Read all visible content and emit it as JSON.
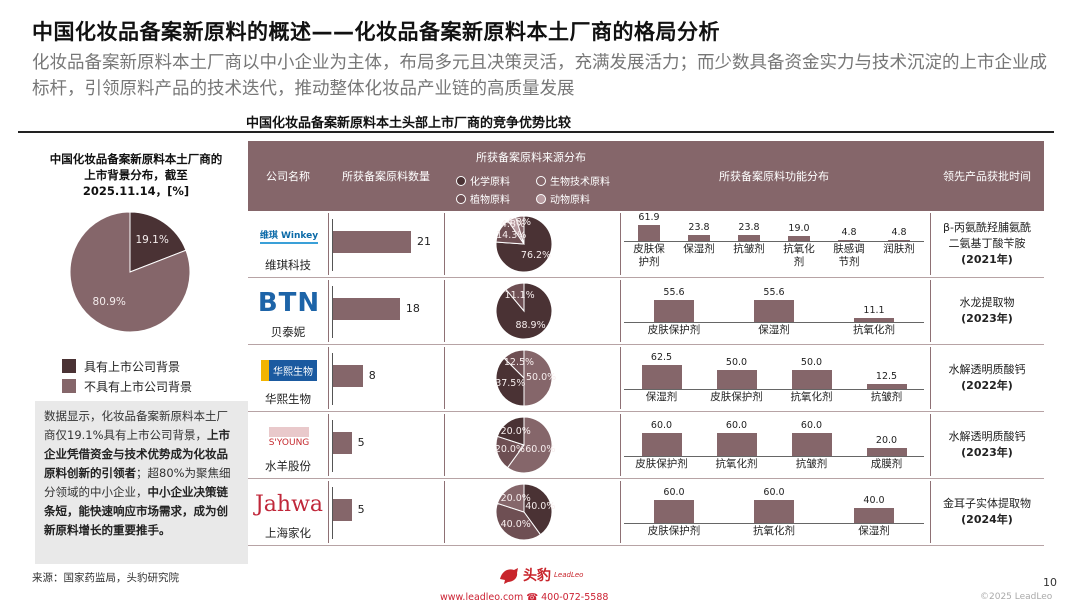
{
  "title": "中国化妆品备案新原料的概述——化妆品备案新原料本土厂商的格局分析",
  "subtitle": "化妆品备案新原料本土厂商以中小企业为主体，布局多元且决策灵活，充满发展活力；而少数具备资金实力与技术沉淀的上市企业成标杆，引领原料产品的技术迭代，推动整体化妆品产业链的高质量发展",
  "colors": {
    "primary": "#85666a",
    "dark": "#4a3234",
    "mid": "#6e4f53",
    "light": "#b89ba0"
  },
  "left_panel": {
    "title": "中国化妆品备案新原料本土厂商的上市背景分布，截至2025.11.14，[%]",
    "note_parts": [
      {
        "text": "数据显示，化妆品备案新原料本土厂商仅19.1%具有上市公司背景，",
        "bold": false
      },
      {
        "text": "上市企业凭借资金与技术优势成为化妆品原料创新的引领者",
        "bold": true
      },
      {
        "text": "；超80%为聚焦细分领域的中小企业，",
        "bold": false
      },
      {
        "text": "中小企业决策链条短，能快速响应市场需求，成为创新原料增长的重要推手。",
        "bold": true
      }
    ],
    "source": "来源：国家药监局，头豹研究院"
  },
  "table": {
    "title": "中国化妆品备案新原料本土头部上市厂商的竞争优势比较",
    "headers": {
      "company": "公司名称",
      "count": "所获备案原料数量",
      "source": "所获备案原料来源分布",
      "func": "所获备案原料功能分布",
      "approval": "领先产品获批时间"
    },
    "source_legend": [
      {
        "label": "化学原料",
        "color": "#4a3234"
      },
      {
        "label": "生物技术原料",
        "color": "#85666a"
      },
      {
        "label": "植物原料",
        "color": "#6e4f53"
      },
      {
        "label": "动物原料",
        "color": "#b89ba0"
      }
    ],
    "rows": [
      {
        "name": "维琪科技",
        "logo": "维琪 Winkey",
        "count": "21",
        "product_line1": "β-丙氨酰羟脯氨酰",
        "product_line2": "二氨基丁酸苄胺",
        "year": "(2021年)"
      },
      {
        "name": "贝泰妮",
        "logo": "BTN",
        "count": "18",
        "product_line1": "水龙提取物",
        "product_line2": "",
        "year": "(2023年)"
      },
      {
        "name": "华熙生物",
        "logo": "华熙生物",
        "count": "8",
        "product_line1": "水解透明质酸钙",
        "product_line2": "",
        "year": "(2022年)"
      },
      {
        "name": "水羊股份",
        "logo": "S'YOUNG",
        "count": "5",
        "product_line1": "水解透明质酸钙",
        "product_line2": "",
        "year": "(2023年)"
      },
      {
        "name": "上海家化",
        "logo": "Jahwa",
        "count": "5",
        "product_line1": "金耳子实体提取物",
        "product_line2": "",
        "year": "(2024年)"
      }
    ]
  },
  "footer": {
    "brand": "头豹",
    "brand_en": "LeadLeo",
    "contact": "www.leadleo.com  ☎ 400-072-5588",
    "page": "10",
    "copyright": "©2025 LeadLeo"
  },
  "chart_data": [
    {
      "type": "pie",
      "title": "中国化妆品备案新原料本土厂商的上市背景分布，截至2025.11.14，[%]",
      "categories": [
        "具有上市公司背景",
        "不具有上市公司背景"
      ],
      "values": [
        19.1,
        80.9
      ],
      "colors": [
        "#4a3234",
        "#85666a"
      ]
    },
    {
      "type": "bar",
      "title": "所获备案原料数量",
      "categories": [
        "维琪科技",
        "贝泰妮",
        "华熙生物",
        "水羊股份",
        "上海家化"
      ],
      "values": [
        21,
        18,
        8,
        5,
        5
      ]
    },
    {
      "type": "pie",
      "title": "所获备案原料来源分布",
      "series": [
        {
          "name": "维琪科技",
          "slices": [
            {
              "cat": "化学原料",
              "v": 76.2
            },
            {
              "cat": "植物原料",
              "v": 14.3
            },
            {
              "cat": "动物原料",
              "v": 4.8
            },
            {
              "cat": "生物技术原料",
              "v": 4.8
            }
          ]
        },
        {
          "name": "贝泰妮",
          "slices": [
            {
              "cat": "化学原料",
              "v": 88.9
            },
            {
              "cat": "植物原料",
              "v": 11.1
            }
          ]
        },
        {
          "name": "华熙生物",
          "slices": [
            {
              "cat": "生物技术原料",
              "v": 50.0
            },
            {
              "cat": "化学原料",
              "v": 37.5
            },
            {
              "cat": "植物原料",
              "v": 12.5
            }
          ]
        },
        {
          "name": "水羊股份",
          "slices": [
            {
              "cat": "生物技术原料",
              "v": 60.0
            },
            {
              "cat": "植物原料",
              "v": 20.0
            },
            {
              "cat": "化学原料",
              "v": 20.0
            }
          ]
        },
        {
          "name": "上海家化",
          "slices": [
            {
              "cat": "化学原料",
              "v": 40.0
            },
            {
              "cat": "植物原料",
              "v": 40.0
            },
            {
              "cat": "生物技术原料",
              "v": 20.0
            }
          ]
        }
      ]
    },
    {
      "type": "bar",
      "title": "所获备案原料功能分布",
      "series": [
        {
          "name": "维琪科技",
          "categories": [
            "皮肤保护剂",
            "保湿剂",
            "抗皱剂",
            "抗氧化剂",
            "肤感调节剂",
            "润肤剂"
          ],
          "values": [
            61.9,
            23.8,
            23.8,
            19.0,
            4.8,
            4.8
          ]
        },
        {
          "name": "贝泰妮",
          "categories": [
            "皮肤保护剂",
            "保湿剂",
            "抗氧化剂"
          ],
          "values": [
            55.6,
            55.6,
            11.1
          ]
        },
        {
          "name": "华熙生物",
          "categories": [
            "保湿剂",
            "皮肤保护剂",
            "抗氧化剂",
            "抗皱剂"
          ],
          "values": [
            62.5,
            50.0,
            50.0,
            12.5
          ]
        },
        {
          "name": "水羊股份",
          "categories": [
            "皮肤保护剂",
            "抗氧化剂",
            "抗皱剂",
            "成膜剂"
          ],
          "values": [
            60.0,
            60.0,
            60.0,
            20.0
          ]
        },
        {
          "name": "上海家化",
          "categories": [
            "皮肤保护剂",
            "抗氧化剂",
            "保湿剂"
          ],
          "values": [
            60.0,
            60.0,
            40.0
          ]
        }
      ]
    }
  ]
}
